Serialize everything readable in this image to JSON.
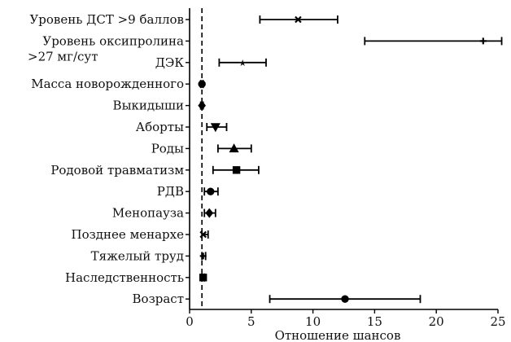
{
  "chart_data": {
    "type": "forest",
    "xlabel": "Отношение шансов",
    "xlim": [
      0,
      25
    ],
    "xticks": [
      0,
      5,
      10,
      15,
      20,
      25
    ],
    "reference_line": 1,
    "grid": false,
    "rows": [
      {
        "label": "Уровень ДСТ >9 баллов",
        "or": 8.8,
        "ci": [
          5.7,
          12.0
        ],
        "marker": "x"
      },
      {
        "label": "Уровень оксипролина >27 мг/сут",
        "label_lines": [
          "Уровень оксипролина",
          ">27 мг/сут"
        ],
        "or": 23.8,
        "ci": [
          14.2,
          25.3
        ],
        "marker": "plus"
      },
      {
        "label": "ДЭК",
        "or": 4.3,
        "ci": [
          2.4,
          6.2
        ],
        "marker": "star"
      },
      {
        "label": "Масса новорожденного",
        "or": 1.0,
        "ci": [
          0.9,
          1.1
        ],
        "marker": "circle"
      },
      {
        "label": "Выкидыши",
        "or": 1.0,
        "ci": [
          0.9,
          1.1
        ],
        "marker": "diamond"
      },
      {
        "label": "Аборты",
        "or": 2.1,
        "ci": [
          1.4,
          3.0
        ],
        "marker": "triangle-down"
      },
      {
        "label": "Роды",
        "or": 3.6,
        "ci": [
          2.3,
          5.0
        ],
        "marker": "triangle-up"
      },
      {
        "label": "Родовой травматизм",
        "or": 3.8,
        "ci": [
          1.9,
          5.6
        ],
        "marker": "square"
      },
      {
        "label": "РДВ",
        "or": 1.7,
        "ci": [
          1.2,
          2.3
        ],
        "marker": "circle"
      },
      {
        "label": "Менопауза",
        "or": 1.6,
        "ci": [
          1.2,
          2.1
        ],
        "marker": "diamond"
      },
      {
        "label": "Позднее менархе",
        "or": 1.1,
        "ci": [
          1.0,
          1.5
        ],
        "marker": "x"
      },
      {
        "label": "Тяжелый труд",
        "or": 1.1,
        "ci": [
          1.0,
          1.3
        ],
        "marker": "plus"
      },
      {
        "label": "Наследственность",
        "or": 1.1,
        "ci": [
          1.0,
          1.2
        ],
        "marker": "square"
      },
      {
        "label": "Возраст",
        "or": 12.6,
        "ci": [
          6.5,
          18.7
        ],
        "marker": "circle"
      }
    ]
  }
}
